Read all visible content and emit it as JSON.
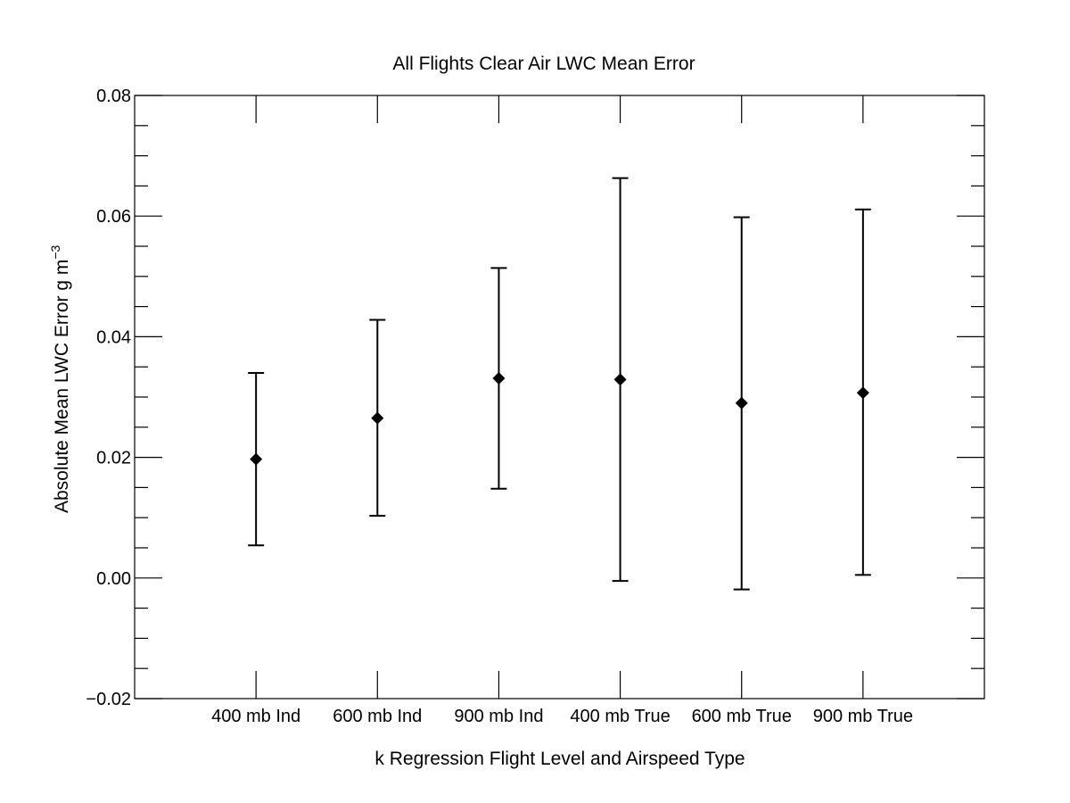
{
  "chart_data": {
    "type": "scatter",
    "title": "All Flights Clear Air LWC Mean Error",
    "xlabel": "k Regression Flight Level and Airspeed Type",
    "ylabel": "Absolute Mean LWC Error g m",
    "ylabel_superscript": "−3",
    "categories": [
      "400 mb Ind",
      "600 mb Ind",
      "900 mb Ind",
      "400 mb True",
      "600 mb True",
      "900 mb True"
    ],
    "values": [
      0.0197,
      0.0265,
      0.0331,
      0.0329,
      0.029,
      0.0307
    ],
    "error_low": [
      0.0054,
      0.0103,
      0.0148,
      -0.0005,
      -0.0019,
      0.0005
    ],
    "error_high": [
      0.034,
      0.0428,
      0.0514,
      0.0663,
      0.0598,
      0.0611
    ],
    "ylim": [
      -0.02,
      0.08
    ],
    "yticks": [
      -0.02,
      0.0,
      0.02,
      0.04,
      0.06,
      0.08
    ],
    "ytick_labels": [
      "−0.02",
      "0.00",
      "0.02",
      "0.04",
      "0.06",
      "0.08"
    ],
    "xlim": [
      0,
      7
    ],
    "marker": "diamond",
    "grid": false,
    "colors": {
      "marker": "#000000",
      "axis": "#000000"
    }
  }
}
